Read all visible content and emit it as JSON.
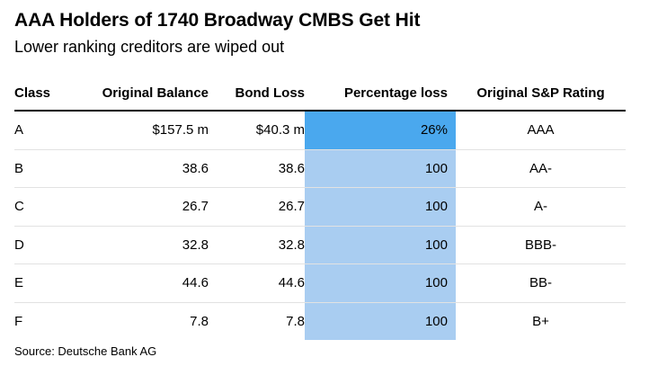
{
  "title": "AAA Holders of 1740 Broadway CMBS Get Hit",
  "subtitle": "Lower ranking creditors are wiped out",
  "source": "Source: Deutsche Bank AG",
  "colors": {
    "pct_high": "#4aa8ee",
    "pct_full": "#a9cdf1"
  },
  "chart_data": {
    "type": "table",
    "columns": [
      "Class",
      "Original Balance",
      "Bond Loss",
      "Percentage loss",
      "Original S&P Rating"
    ],
    "rows": [
      {
        "class": "A",
        "original_balance": "$157.5 m",
        "bond_loss": "$40.3 m",
        "percentage_loss": "26%",
        "pct_value": 26,
        "rating": "AAA"
      },
      {
        "class": "B",
        "original_balance": "38.6",
        "bond_loss": "38.6",
        "percentage_loss": "100",
        "pct_value": 100,
        "rating": "AA-"
      },
      {
        "class": "C",
        "original_balance": "26.7",
        "bond_loss": "26.7",
        "percentage_loss": "100",
        "pct_value": 100,
        "rating": "A-"
      },
      {
        "class": "D",
        "original_balance": "32.8",
        "bond_loss": "32.8",
        "percentage_loss": "100",
        "pct_value": 100,
        "rating": "BBB-"
      },
      {
        "class": "E",
        "original_balance": "44.6",
        "bond_loss": "44.6",
        "percentage_loss": "100",
        "pct_value": 100,
        "rating": "BB-"
      },
      {
        "class": "F",
        "original_balance": "7.8",
        "bond_loss": "7.8",
        "percentage_loss": "100",
        "pct_value": 100,
        "rating": "B+"
      }
    ]
  }
}
